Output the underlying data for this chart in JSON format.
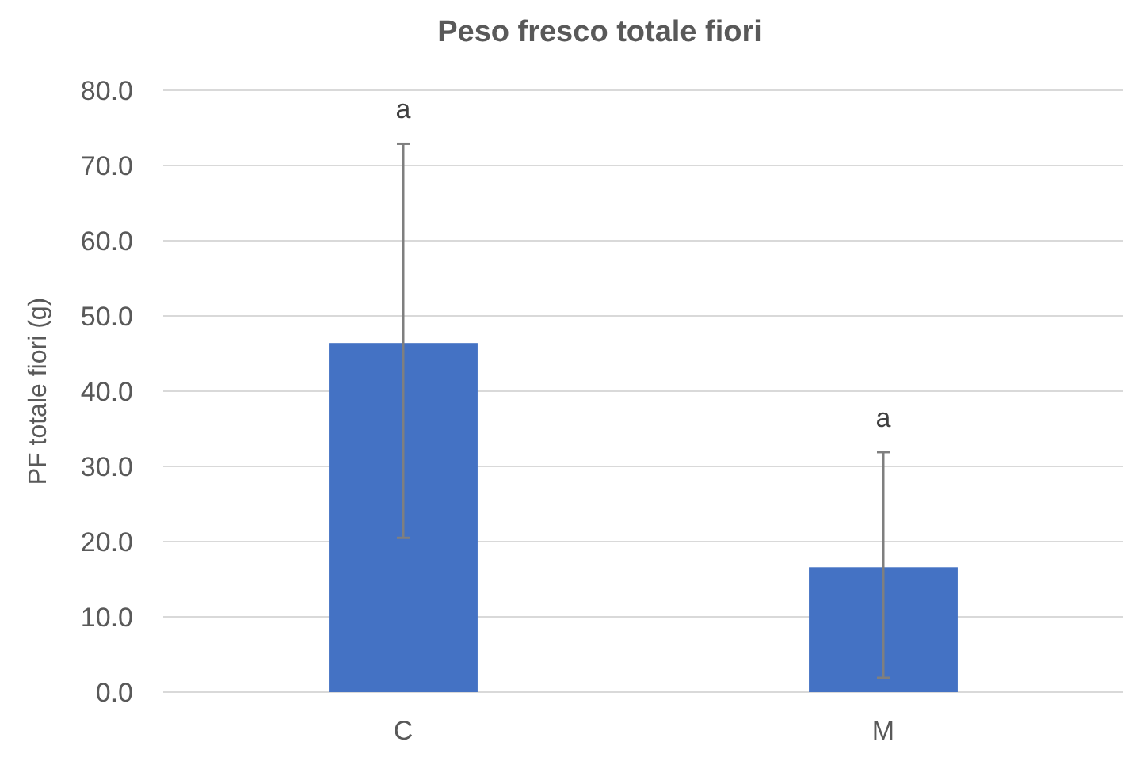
{
  "chart_data": {
    "type": "bar",
    "title": "Peso fresco totale fiori",
    "ylabel": "PF totale fiori (g)",
    "categories": [
      "C",
      "M"
    ],
    "values": [
      46.4,
      16.6
    ],
    "errors": [
      [
        20.5,
        72.9
      ],
      [
        1.9,
        31.9
      ]
    ],
    "color": "#4472c4",
    "ylim": [
      0,
      80
    ],
    "yticks": [
      {
        "value": 0,
        "label": "0.0"
      },
      {
        "value": 10,
        "label": "10.0"
      },
      {
        "value": 20,
        "label": "20.0"
      },
      {
        "value": 30,
        "label": "30.0"
      },
      {
        "value": 40,
        "label": "40.0"
      },
      {
        "value": 50,
        "label": "50.0"
      },
      {
        "value": 60,
        "label": "60.0"
      },
      {
        "value": 70,
        "label": "70.0"
      },
      {
        "value": 80,
        "label": "80.0"
      }
    ],
    "grid": "y",
    "annotations": [
      "a",
      "a"
    ]
  }
}
